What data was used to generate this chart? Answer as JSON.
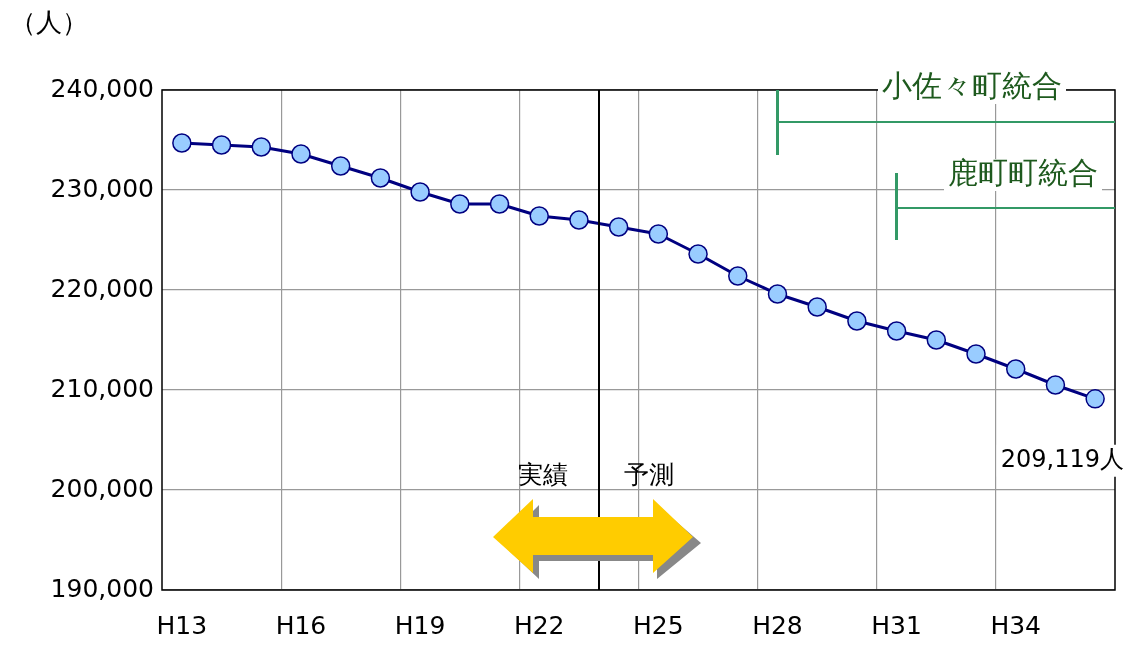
{
  "chart_data": {
    "type": "line",
    "ylabel": "（人）",
    "categories": [
      "H13",
      null,
      null,
      "H16",
      null,
      null,
      "H19",
      null,
      null,
      "H22",
      null,
      null,
      "H25",
      null,
      null,
      "H28",
      null,
      null,
      "H31",
      null,
      null,
      "H34",
      null,
      null
    ],
    "series": [
      {
        "color": "#000080",
        "values": [
          234700,
          234500,
          234300,
          233600,
          232400,
          231200,
          229800,
          228600,
          228600,
          227400,
          227000,
          226300,
          225600,
          223600,
          221400,
          219600,
          218300,
          216900,
          215900,
          215000,
          213600,
          212100,
          210500,
          209119
        ],
        "value_labels": [
          null,
          null,
          null,
          null,
          null,
          null,
          null,
          null,
          null,
          null,
          null,
          null,
          null,
          null,
          null,
          null,
          null,
          null,
          null,
          null,
          null,
          null,
          null,
          "209,119人"
        ]
      }
    ],
    "ylim": [
      190000,
      240000
    ],
    "yticks": [
      {
        "value": 190000,
        "label": "190,000"
      },
      {
        "value": 200000,
        "label": "200,000"
      },
      {
        "value": 210000,
        "label": "210,000"
      },
      {
        "value": 220000,
        "label": "220,000"
      },
      {
        "value": 230000,
        "label": "230,000"
      },
      {
        "value": 240000,
        "label": "240,000"
      }
    ],
    "grid": true,
    "marker": "circle",
    "legend": false,
    "annotations": [
      "小佐々町統合",
      "鹿町町統合",
      "実績",
      "予測"
    ]
  }
}
